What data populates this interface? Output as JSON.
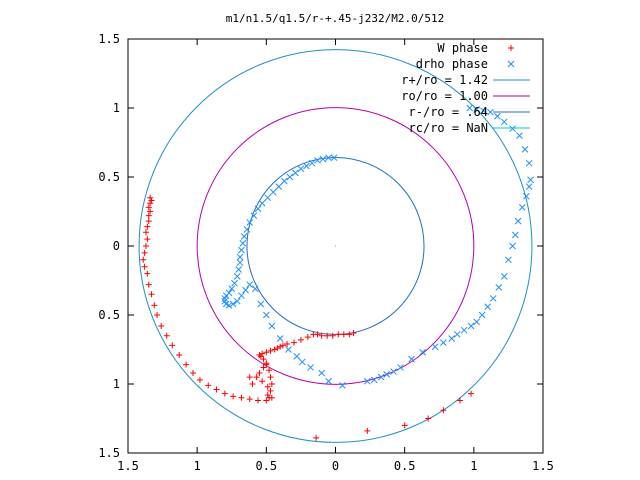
{
  "chart_data": {
    "type": "scatter",
    "title": "m1/n1.5/q1.5/r-+.45-j232/M2.0/512",
    "xlabel": "",
    "ylabel": "",
    "xlim": [
      -1.5,
      1.5
    ],
    "ylim": [
      -1.5,
      1.5
    ],
    "x_ticks": [
      -1.5,
      -1,
      -0.5,
      0,
      0.5,
      1,
      1.5
    ],
    "x_tick_labels": [
      "1.5",
      "1",
      "0.5",
      "0",
      "0.5",
      "1",
      "1.5"
    ],
    "y_ticks": [
      1.5,
      1,
      0.5,
      0,
      -0.5,
      -1,
      -1.5
    ],
    "y_tick_labels": [
      "1.5",
      "1",
      "0.5",
      "0",
      "0.5",
      "1",
      "1.5"
    ],
    "grid": false,
    "legend_position": "top-right",
    "colors": {
      "w_phase": "#ff0000",
      "drho_phase": "#1e90ff",
      "r_plus": "#1f8fc4",
      "ro": "#b200b2",
      "r_minus": "#1f6fc4",
      "rc": "#00c8c8"
    },
    "series": [
      {
        "name": "W phase",
        "marker": "plus",
        "x": [
          -1.34,
          -1.33,
          -1.34,
          -1.35,
          -1.34,
          -1.35,
          -1.35,
          -1.36,
          -1.37,
          -1.36,
          -1.37,
          -1.38,
          -1.39,
          -1.38,
          -1.36,
          -1.35,
          -1.33,
          -1.31,
          -1.29,
          -1.26,
          -1.22,
          -1.18,
          -1.13,
          -1.08,
          -1.03,
          -0.98,
          -0.92,
          -0.86,
          -0.8,
          -0.74,
          -0.68,
          -0.62,
          -0.56,
          -0.5,
          -0.48,
          -0.47,
          -0.46,
          -0.47,
          -0.48,
          -0.5,
          -0.52,
          -0.54,
          -0.55,
          -0.53,
          -0.5,
          -0.47,
          -0.44,
          -0.42,
          -0.4,
          -0.38,
          -0.35,
          -0.3,
          -0.25,
          -0.2,
          -0.16,
          -0.13,
          -0.1,
          -0.06,
          -0.02,
          0.02,
          0.06,
          0.1,
          0.13,
          -0.5,
          -0.52,
          -0.55,
          -0.57,
          -0.53,
          -0.49,
          -0.6,
          -0.62,
          -0.49,
          -0.46,
          0.23,
          0.5,
          0.67,
          0.78,
          0.9,
          0.98,
          -0.14
        ],
        "y": [
          0.35,
          0.33,
          0.31,
          0.28,
          0.25,
          0.22,
          0.18,
          0.14,
          0.1,
          0.05,
          0.0,
          -0.05,
          -0.1,
          -0.15,
          -0.2,
          -0.28,
          -0.35,
          -0.43,
          -0.5,
          -0.58,
          -0.65,
          -0.72,
          -0.79,
          -0.86,
          -0.92,
          -0.97,
          -1.01,
          -1.04,
          -1.07,
          -1.09,
          -1.1,
          -1.11,
          -1.12,
          -1.12,
          -1.1,
          -1.05,
          -1.0,
          -0.95,
          -0.9,
          -0.86,
          -0.82,
          -0.8,
          -0.79,
          -0.78,
          -0.77,
          -0.76,
          -0.75,
          -0.74,
          -0.73,
          -0.72,
          -0.71,
          -0.7,
          -0.68,
          -0.66,
          -0.64,
          -0.64,
          -0.65,
          -0.65,
          -0.65,
          -0.64,
          -0.64,
          -0.64,
          -0.63,
          -0.85,
          -0.88,
          -0.92,
          -0.95,
          -0.98,
          -1.02,
          -1.0,
          -0.95,
          -1.08,
          -1.1,
          -1.34,
          -1.3,
          -1.25,
          -1.19,
          -1.12,
          -1.07,
          -1.39
        ]
      },
      {
        "name": "drho phase",
        "marker": "x",
        "x": [
          -0.01,
          -0.05,
          -0.09,
          -0.13,
          -0.17,
          -0.21,
          -0.25,
          -0.29,
          -0.33,
          -0.37,
          -0.41,
          -0.45,
          -0.49,
          -0.53,
          -0.56,
          -0.59,
          -0.62,
          -0.64,
          -0.66,
          -0.67,
          -0.68,
          -0.69,
          -0.69,
          -0.7,
          -0.71,
          -0.73,
          -0.75,
          -0.77,
          -0.79,
          -0.8,
          -0.8,
          -0.79,
          -0.77,
          -0.74,
          -0.71,
          -0.68,
          -0.65,
          -0.62,
          -0.58,
          -0.54,
          -0.5,
          -0.46,
          -0.4,
          -0.34,
          -0.28,
          -0.24,
          -0.18,
          -0.1,
          -0.05,
          0.05,
          0.23,
          0.28,
          0.33,
          0.37,
          0.42,
          0.47,
          0.55,
          0.63,
          0.72,
          0.78,
          0.84,
          0.88,
          0.93,
          0.98,
          1.02,
          1.06,
          1.1,
          1.14,
          1.18,
          1.22,
          1.25,
          1.28,
          1.3,
          1.32,
          1.35,
          1.38,
          1.4,
          1.41,
          1.4,
          1.37,
          1.33,
          1.28,
          1.22,
          1.17,
          1.12,
          1.07,
          1.02,
          0.97
        ],
        "y": [
          0.64,
          0.64,
          0.63,
          0.62,
          0.6,
          0.58,
          0.56,
          0.53,
          0.5,
          0.47,
          0.43,
          0.39,
          0.35,
          0.31,
          0.27,
          0.22,
          0.17,
          0.12,
          0.07,
          0.02,
          -0.03,
          -0.08,
          -0.12,
          -0.17,
          -0.22,
          -0.27,
          -0.31,
          -0.34,
          -0.36,
          -0.38,
          -0.4,
          -0.42,
          -0.43,
          -0.42,
          -0.4,
          -0.36,
          -0.32,
          -0.28,
          -0.31,
          -0.42,
          -0.5,
          -0.58,
          -0.67,
          -0.75,
          -0.8,
          -0.84,
          -0.88,
          -0.92,
          -0.98,
          -1.01,
          -0.98,
          -0.97,
          -0.95,
          -0.93,
          -0.91,
          -0.88,
          -0.82,
          -0.77,
          -0.73,
          -0.7,
          -0.67,
          -0.64,
          -0.61,
          -0.58,
          -0.55,
          -0.5,
          -0.44,
          -0.38,
          -0.3,
          -0.22,
          -0.1,
          0.0,
          0.08,
          0.18,
          0.28,
          0.36,
          0.43,
          0.48,
          0.6,
          0.7,
          0.8,
          0.85,
          0.9,
          0.94,
          0.97,
          0.98,
          0.99,
          1.0
        ]
      },
      {
        "name": "r+/ro = 1.42",
        "type": "circle",
        "radius": 1.42
      },
      {
        "name": "ro/ro = 1.00",
        "type": "circle",
        "radius": 1.0
      },
      {
        "name": "r-/ro = .64",
        "type": "circle",
        "radius": 0.64
      },
      {
        "name": "rc/ro = NaN",
        "type": "circle",
        "radius": null
      }
    ]
  }
}
